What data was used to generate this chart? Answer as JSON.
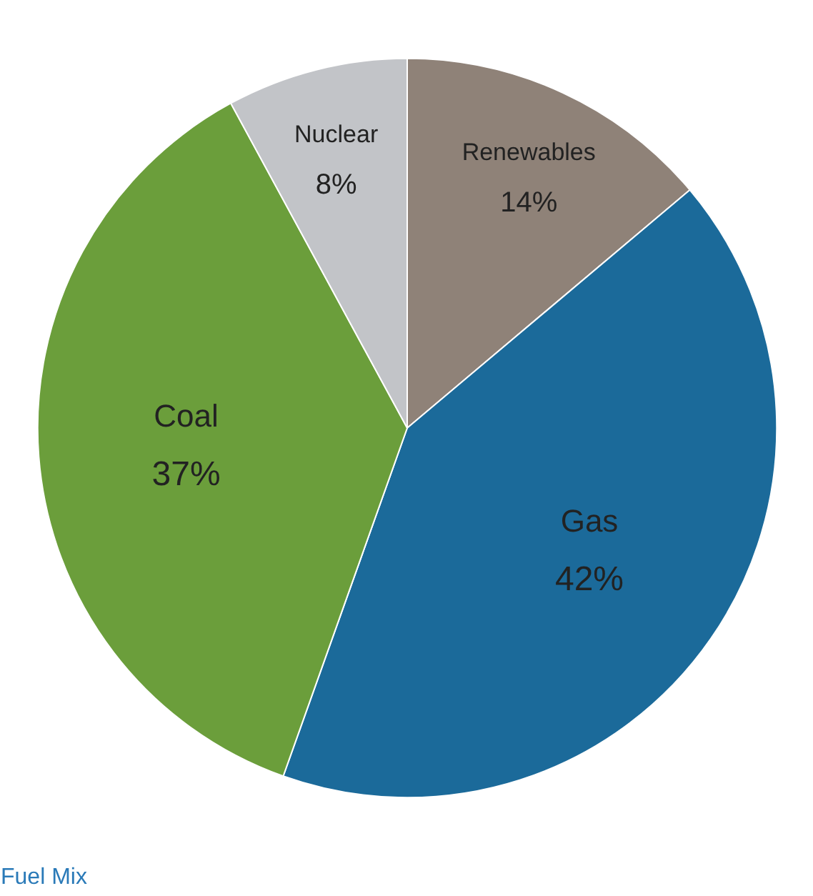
{
  "chart_data": {
    "type": "pie",
    "title": "Fuel Mix",
    "categories": [
      "Renewables",
      "Gas",
      "Coal",
      "Nuclear"
    ],
    "values": [
      14,
      42,
      37,
      8
    ],
    "value_labels": [
      "14%",
      "42%",
      "37%",
      "8%"
    ],
    "colors": [
      "#8f8278",
      "#1b6a9a",
      "#6b9e3b",
      "#c2c4c8"
    ]
  }
}
